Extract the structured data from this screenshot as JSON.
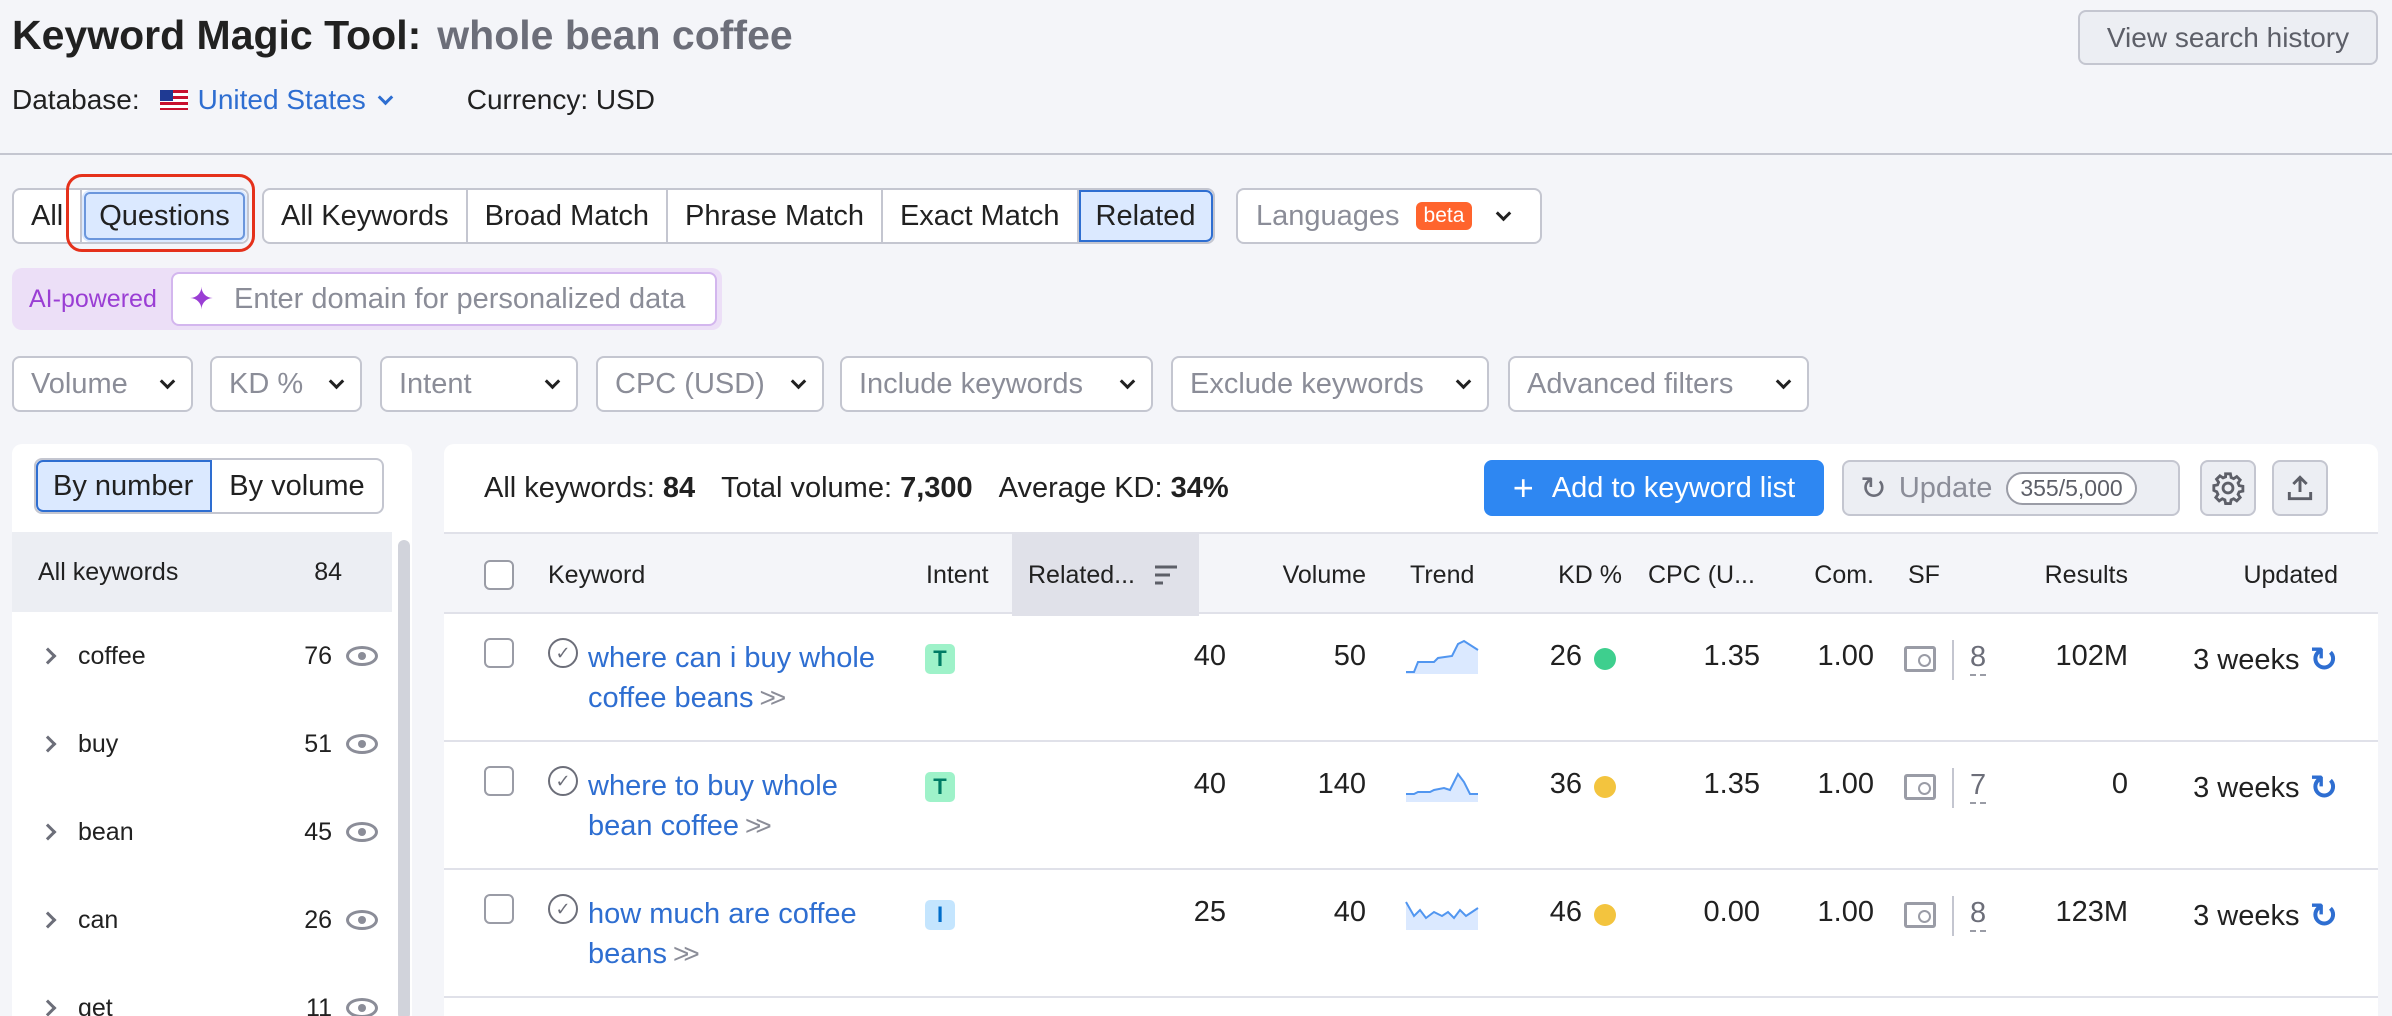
{
  "header": {
    "title": "Keyword Magic Tool:",
    "query": "whole bean coffee",
    "database_label": "Database:",
    "database_value": "United States",
    "currency_text": "Currency: USD",
    "history_button": "View search history"
  },
  "tabs": {
    "all": "All",
    "questions": "Questions",
    "match_types": [
      "All Keywords",
      "Broad Match",
      "Phrase Match",
      "Exact Match",
      "Related"
    ],
    "active_match": "Related",
    "languages": "Languages",
    "beta_badge": "beta"
  },
  "ai": {
    "label": "AI-powered",
    "placeholder": "Enter domain for personalized data"
  },
  "filters": [
    "Volume",
    "KD %",
    "Intent",
    "CPC (USD)",
    "Include keywords",
    "Exclude keywords",
    "Advanced filters"
  ],
  "left_panel": {
    "by_number": "By number",
    "by_volume": "By volume",
    "all_label": "All keywords",
    "all_count": "84",
    "groups": [
      {
        "keyword": "coffee",
        "count": "76"
      },
      {
        "keyword": "buy",
        "count": "51"
      },
      {
        "keyword": "bean",
        "count": "45"
      },
      {
        "keyword": "can",
        "count": "26"
      },
      {
        "keyword": "get",
        "count": "11"
      }
    ]
  },
  "summary": {
    "all_keywords_label": "All keywords:",
    "all_keywords_value": "84",
    "total_volume_label": "Total volume:",
    "total_volume_value": "7,300",
    "avg_kd_label": "Average KD:",
    "avg_kd_value": "34%"
  },
  "toolbar": {
    "add_button": "Add to keyword list",
    "update_button": "Update",
    "update_quota": "355/5,000"
  },
  "table": {
    "columns": {
      "keyword": "Keyword",
      "intent": "Intent",
      "related": "Related...",
      "volume": "Volume",
      "trend": "Trend",
      "kd": "KD %",
      "cpc": "CPC (U...",
      "com": "Com.",
      "sf": "SF",
      "results": "Results",
      "updated": "Updated"
    },
    "rows": [
      {
        "keyword": "where can i buy whole coffee beans",
        "intent": "T",
        "related": "40",
        "volume": "50",
        "kd": "26",
        "kd_color": "#3ecf8e",
        "cpc": "1.35",
        "com": "1.00",
        "sf": "8",
        "results": "102M",
        "updated": "3 weeks"
      },
      {
        "keyword": "where to buy whole bean coffee",
        "intent": "T",
        "related": "40",
        "volume": "140",
        "kd": "36",
        "kd_color": "#f3c43e",
        "cpc": "1.35",
        "com": "1.00",
        "sf": "7",
        "results": "0",
        "updated": "3 weeks"
      },
      {
        "keyword": "how much are coffee beans",
        "intent": "I",
        "related": "25",
        "volume": "40",
        "kd": "46",
        "kd_color": "#f3c43e",
        "cpc": "0.00",
        "com": "1.00",
        "sf": "8",
        "results": "123M",
        "updated": "3 weeks"
      }
    ]
  },
  "colors": {
    "accent": "#2e87f2",
    "link": "#2e6ed1",
    "highlight_ring": "#e5311b",
    "ai_purple": "#9a3ed4"
  },
  "icons": [
    "us-flag-icon",
    "chevron-down-icon",
    "sparkle-icon",
    "chevron-right-icon",
    "eye-icon",
    "plus-icon",
    "refresh-icon",
    "gear-icon",
    "export-icon",
    "sort-icon",
    "check-circle-icon",
    "serp-features-icon"
  ]
}
